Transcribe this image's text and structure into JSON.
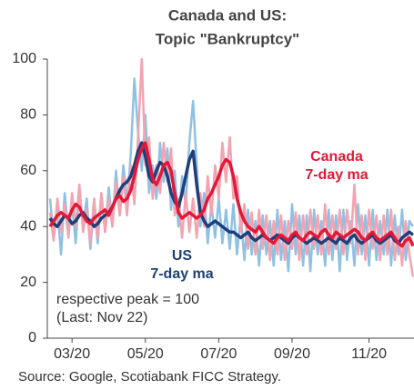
{
  "chart_data": {
    "type": "line",
    "title": [
      "Canada and US:",
      "Topic \"Bankruptcy\""
    ],
    "source": "Source: Google, Scotiabank FICC  Strategy.",
    "categories": [
      null,
      null,
      null,
      null,
      null,
      null,
      "03/20",
      null,
      null,
      null,
      null,
      null,
      null,
      null,
      null,
      null,
      null,
      null,
      null,
      null,
      null,
      null,
      null,
      null,
      null,
      null,
      "05/20",
      null,
      null,
      null,
      null,
      null,
      null,
      null,
      null,
      null,
      null,
      null,
      null,
      null,
      null,
      null,
      null,
      null,
      null,
      null,
      "07/20",
      null,
      null,
      null,
      null,
      null,
      null,
      null,
      null,
      null,
      null,
      null,
      null,
      null,
      null,
      null,
      null,
      null,
      null,
      null,
      "09/20",
      null,
      null,
      null,
      null,
      null,
      null,
      null,
      null,
      null,
      null,
      null,
      null,
      null,
      null,
      null,
      null,
      null,
      null,
      null,
      null,
      "11/20",
      null,
      null,
      null,
      null,
      null,
      null,
      null,
      null,
      null,
      null,
      null,
      null
    ],
    "ylim": [
      0,
      100
    ],
    "yticks": [
      0,
      20,
      40,
      60,
      80,
      100
    ],
    "grid": false,
    "series": [
      {
        "color": "#8fc1e3",
        "width": 2.5,
        "values": [
          50,
          36,
          46,
          30,
          52,
          38,
          48,
          34,
          54,
          40,
          50,
          32,
          48,
          34,
          52,
          38,
          54,
          40,
          60,
          44,
          62,
          48,
          66,
          93,
          74,
          60,
          80,
          52,
          62,
          50,
          70,
          56,
          68,
          46,
          60,
          40,
          58,
          48,
          70,
          85,
          62,
          40,
          52,
          34,
          48,
          36,
          50,
          34,
          46,
          32,
          48,
          30,
          44,
          28,
          46,
          30,
          42,
          26,
          44,
          30,
          42,
          26,
          46,
          28,
          42,
          24,
          48,
          30,
          44,
          26,
          44,
          24,
          46,
          30,
          42,
          26,
          46,
          28,
          44,
          24,
          46,
          28,
          42,
          26,
          48,
          30,
          44,
          26,
          46,
          28,
          42,
          30,
          46,
          26,
          44,
          30,
          46,
          28,
          42,
          40
        ]
      },
      {
        "color": "#f4a3b0",
        "width": 2.5,
        "values": [
          45,
          35,
          50,
          38,
          48,
          36,
          52,
          40,
          55,
          38,
          46,
          34,
          50,
          36,
          52,
          38,
          50,
          40,
          56,
          44,
          58,
          44,
          62,
          48,
          72,
          100,
          62,
          72,
          50,
          62,
          52,
          70,
          56,
          68,
          44,
          50,
          36,
          52,
          38,
          50,
          36,
          52,
          40,
          58,
          44,
          62,
          50,
          70,
          56,
          72,
          50,
          58,
          38,
          48,
          32,
          45,
          30,
          46,
          32,
          44,
          28,
          42,
          30,
          44,
          28,
          42,
          32,
          45,
          28,
          44,
          30,
          46,
          32,
          44,
          30,
          48,
          30,
          44,
          32,
          46,
          30,
          46,
          34,
          55,
          30,
          44,
          28,
          46,
          32,
          44,
          28,
          44,
          30,
          46,
          28,
          40,
          26,
          42,
          30,
          22
        ]
      },
      {
        "color": "#1f3f7a",
        "width": 3.5,
        "values": [
          43,
          41,
          40,
          42,
          44,
          43,
          41,
          42,
          44,
          45,
          43,
          42,
          40,
          41,
          43,
          44,
          45,
          47,
          50,
          53,
          55,
          56,
          58,
          62,
          67,
          70,
          65,
          58,
          56,
          60,
          63,
          62,
          58,
          52,
          49,
          47,
          52,
          58,
          64,
          67,
          55,
          45,
          42,
          40,
          41,
          42,
          41,
          40,
          39,
          38,
          38,
          37,
          36,
          37,
          38,
          36,
          35,
          36,
          37,
          36,
          35,
          36,
          37,
          36,
          35,
          34,
          36,
          37,
          36,
          35,
          34,
          35,
          36,
          35,
          34,
          35,
          36,
          35,
          34,
          36,
          35,
          34,
          36,
          37,
          35,
          34,
          35,
          36,
          37,
          35,
          34,
          35,
          36,
          37,
          35,
          34,
          36,
          37,
          38,
          37
        ]
      },
      {
        "color": "#e31837",
        "width": 3.5,
        "values": [
          40,
          42,
          44,
          45,
          44,
          43,
          46,
          48,
          47,
          44,
          42,
          41,
          43,
          44,
          45,
          46,
          44,
          47,
          50,
          51,
          49,
          50,
          53,
          58,
          64,
          68,
          70,
          64,
          57,
          55,
          58,
          62,
          63,
          60,
          52,
          45,
          43,
          44,
          45,
          44,
          43,
          44,
          46,
          50,
          52,
          55,
          58,
          62,
          64,
          63,
          58,
          50,
          45,
          42,
          40,
          39,
          38,
          40,
          38,
          36,
          35,
          34,
          36,
          37,
          36,
          35,
          37,
          38,
          36,
          35,
          37,
          38,
          37,
          36,
          38,
          39,
          37,
          36,
          38,
          37,
          36,
          37,
          38,
          39,
          38,
          36,
          35,
          37,
          38,
          36,
          35,
          36,
          37,
          38,
          36,
          34,
          33,
          35,
          36,
          33
        ]
      }
    ],
    "annotations": [
      {
        "lines": [
          "Canada",
          "7-day ma"
        ],
        "color": "#e31837"
      },
      {
        "lines": [
          "US",
          "7-day ma"
        ],
        "color": "#1f3f7a"
      },
      {
        "lines": [
          "respective peak = 100",
          "(Last: Nov 22)"
        ],
        "color": "#333333"
      }
    ]
  }
}
